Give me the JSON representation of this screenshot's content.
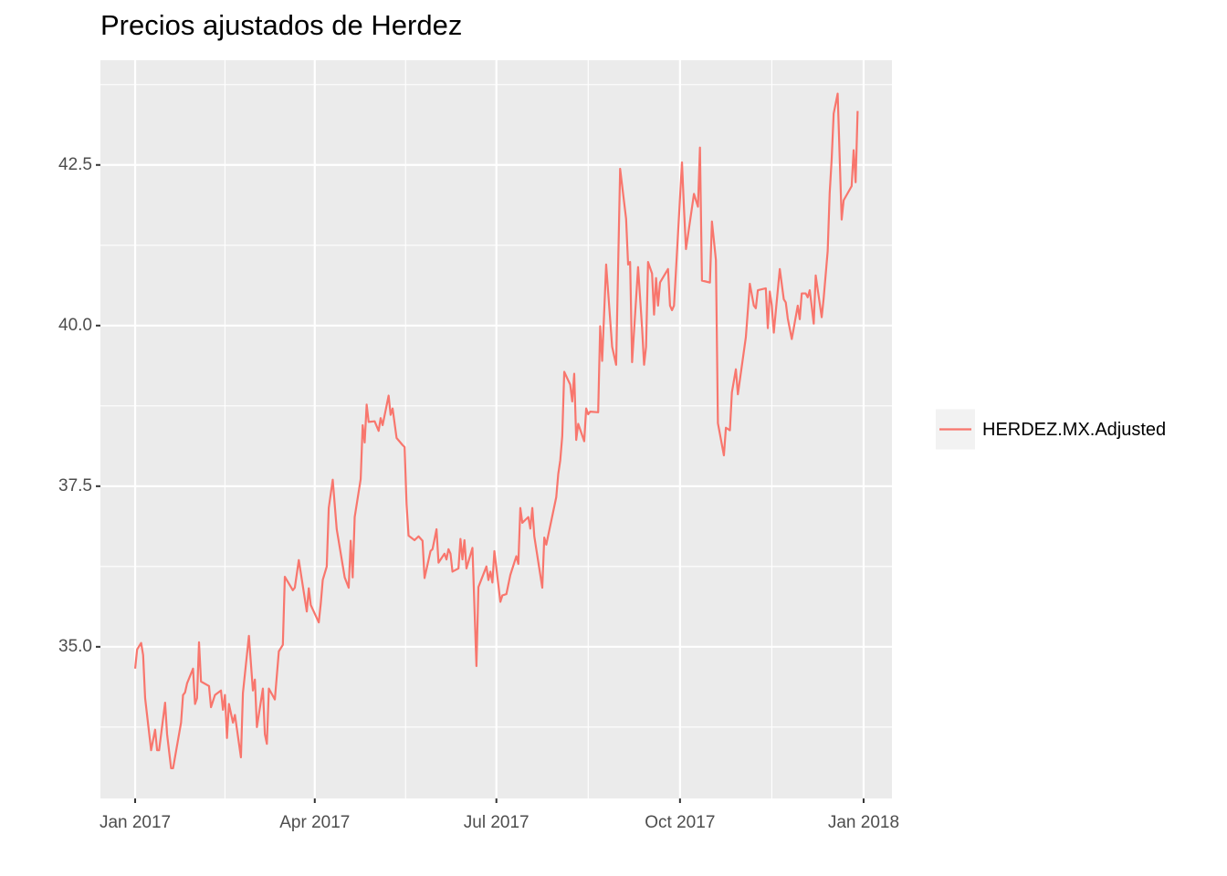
{
  "chart_data": {
    "type": "line",
    "title": "Precios ajustados de Herdez",
    "x": [
      0,
      1,
      3,
      4,
      5,
      8,
      10,
      11,
      12,
      15,
      16,
      18,
      19,
      23,
      24,
      25,
      26,
      29,
      30,
      31,
      32,
      33,
      37,
      38,
      40,
      43,
      44,
      45,
      46,
      47,
      49,
      50,
      53,
      54,
      57,
      59,
      60,
      61,
      64,
      65,
      66,
      67,
      70,
      72,
      74,
      75,
      79,
      80,
      82,
      84,
      86,
      87,
      88,
      92,
      93,
      94,
      96,
      97,
      99,
      101,
      105,
      107,
      108,
      109,
      110,
      113,
      114,
      115,
      116,
      117,
      120,
      122,
      123,
      124,
      127,
      128,
      129,
      131,
      134,
      135,
      136,
      137,
      140,
      142,
      144,
      145,
      148,
      149,
      151,
      152,
      155,
      156,
      157,
      158,
      159,
      162,
      163,
      164,
      165,
      166,
      169,
      171,
      172,
      176,
      177,
      178,
      179,
      180,
      183,
      184,
      186,
      188,
      191,
      192,
      193,
      194,
      197,
      198,
      199,
      200,
      204,
      205,
      206,
      211,
      212,
      213,
      214,
      215,
      218,
      219,
      220,
      221,
      222,
      225,
      226,
      227,
      228,
      232,
      233,
      234,
      236,
      239,
      241,
      243,
      246,
      247,
      248,
      249,
      252,
      254,
      255,
      256,
      257,
      259,
      260,
      261,
      262,
      263,
      267,
      268,
      269,
      270,
      274,
      275,
      276,
      280,
      282,
      283,
      284,
      288,
      289,
      291,
      292,
      295,
      296,
      298,
      299,
      301,
      302,
      306,
      308,
      310,
      311,
      312,
      316,
      317,
      318,
      319,
      320,
      323,
      325,
      326,
      327,
      329,
      330,
      332,
      333,
      334,
      336,
      337,
      338,
      339,
      340,
      341,
      344,
      345,
      347,
      348,
      349,
      350,
      352,
      354,
      355,
      359,
      360,
      361,
      362
    ],
    "series": [
      {
        "name": "HERDEZ.MX.Adjusted",
        "color": "#f8766d",
        "values": [
          34.66,
          34.96,
          35.06,
          34.87,
          34.2,
          33.39,
          33.71,
          33.39,
          33.39,
          34.13,
          33.64,
          33.11,
          33.11,
          33.82,
          34.25,
          34.29,
          34.43,
          34.66,
          34.11,
          34.2,
          35.07,
          34.46,
          34.39,
          34.06,
          34.25,
          34.32,
          34.02,
          34.25,
          33.58,
          34.11,
          33.82,
          33.94,
          33.28,
          34.28,
          35.17,
          34.32,
          34.49,
          33.75,
          34.35,
          33.64,
          33.49,
          34.35,
          34.18,
          34.93,
          35.03,
          36.09,
          35.88,
          35.92,
          36.35,
          35.95,
          35.55,
          35.91,
          35.65,
          35.38,
          35.67,
          36.04,
          36.25,
          37.16,
          37.6,
          36.83,
          36.08,
          35.92,
          36.65,
          36.08,
          37.02,
          37.61,
          38.45,
          38.18,
          38.77,
          38.5,
          38.51,
          38.36,
          38.56,
          38.45,
          38.91,
          38.61,
          38.71,
          38.25,
          38.14,
          38.11,
          37.22,
          36.73,
          36.66,
          36.72,
          36.65,
          36.07,
          36.49,
          36.52,
          36.83,
          36.31,
          36.45,
          36.36,
          36.52,
          36.45,
          36.17,
          36.22,
          36.68,
          36.36,
          36.66,
          36.22,
          36.54,
          34.7,
          35.93,
          36.25,
          36.04,
          36.17,
          36.0,
          36.49,
          35.7,
          35.8,
          35.82,
          36.12,
          36.41,
          36.29,
          37.16,
          36.93,
          37.02,
          36.84,
          37.16,
          36.72,
          35.92,
          36.7,
          36.59,
          37.33,
          37.69,
          37.9,
          38.28,
          39.28,
          39.08,
          38.82,
          39.25,
          38.22,
          38.47,
          38.2,
          38.71,
          38.62,
          38.66,
          38.65,
          39.99,
          39.45,
          40.95,
          39.67,
          39.39,
          42.44,
          41.66,
          40.95,
          40.99,
          39.43,
          40.91,
          39.96,
          39.39,
          39.67,
          40.99,
          40.81,
          40.17,
          40.74,
          40.31,
          40.67,
          40.88,
          40.31,
          40.24,
          40.31,
          42.54,
          41.82,
          41.19,
          42.05,
          41.85,
          42.77,
          40.7,
          40.67,
          41.62,
          41.02,
          38.48,
          37.98,
          38.41,
          38.37,
          38.96,
          39.32,
          38.93,
          39.82,
          40.65,
          40.31,
          40.27,
          40.55,
          40.58,
          39.96,
          40.53,
          40.31,
          39.89,
          40.88,
          40.41,
          40.36,
          40.11,
          39.79,
          39.96,
          40.31,
          40.1,
          40.5,
          40.5,
          40.44,
          40.55,
          40.3,
          40.03,
          40.78,
          40.13,
          40.43,
          41.16,
          42.06,
          42.59,
          43.3,
          43.61,
          41.65,
          41.95,
          42.17,
          42.73,
          42.23,
          43.34
        ]
      }
    ],
    "xlim": [
      -17.4,
      379.2
    ],
    "xticks": [
      {
        "value": 0,
        "label": "Jan 2017"
      },
      {
        "value": 90,
        "label": "Apr 2017"
      },
      {
        "value": 181,
        "label": "Jul 2017"
      },
      {
        "value": 273,
        "label": "Oct 2017"
      },
      {
        "value": 365,
        "label": "Jan 2018"
      }
    ],
    "ylim": [
      32.64,
      44.13
    ],
    "yticks": [
      {
        "value": 35,
        "label": "35.0"
      },
      37.5,
      {
        "value": 40,
        "label": "40.0"
      },
      42.5
    ],
    "grid": true,
    "legend": "right"
  }
}
